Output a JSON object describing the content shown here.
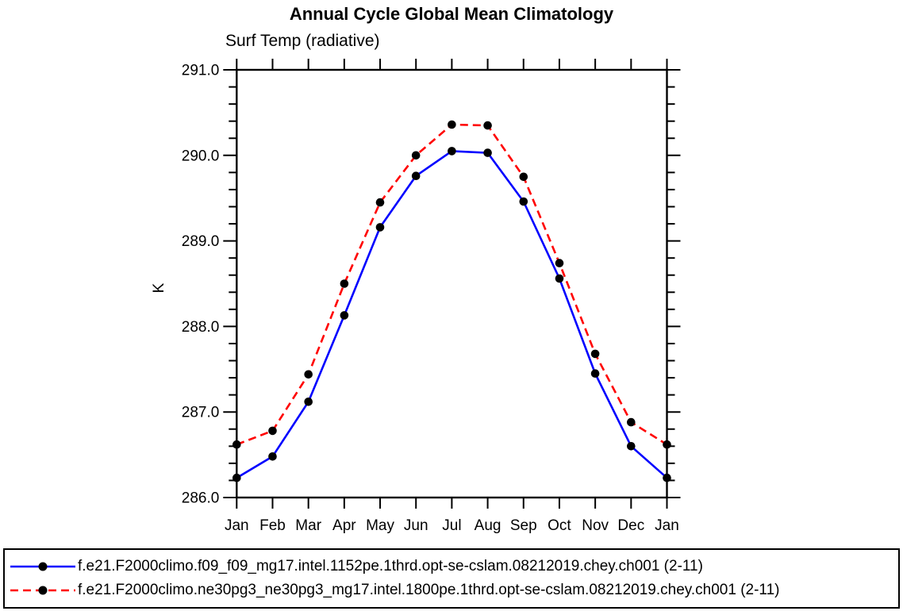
{
  "title": "Annual Cycle Global Mean Climatology",
  "chart_data": {
    "type": "line",
    "title": "Annual Cycle Global Mean Climatology",
    "subtitle": "Surf Temp (radiative)",
    "ylabel": "K",
    "ylim": [
      286.0,
      291.0
    ],
    "ytick_interval": 1.0,
    "yminor_interval": 0.2,
    "ytick_labels": [
      "286.0",
      "287.0",
      "288.0",
      "289.0",
      "290.0",
      "291.0"
    ],
    "categories": [
      "Jan",
      "Feb",
      "Mar",
      "Apr",
      "May",
      "Jun",
      "Jul",
      "Aug",
      "Sep",
      "Oct",
      "Nov",
      "Dec",
      "Jan"
    ],
    "series": [
      {
        "name": "f.e21.F2000climo.f09_f09_mg17.intel.1152pe.1thrd.opt-se-cslam.08212019.chey.ch001 (2-11)",
        "color": "#0000FF",
        "line_style": "solid",
        "marker": "filled-circle",
        "marker_color": "#000000",
        "values": [
          286.23,
          286.48,
          287.12,
          288.13,
          289.16,
          289.76,
          290.05,
          290.03,
          289.46,
          288.56,
          287.45,
          286.6,
          286.23
        ]
      },
      {
        "name": "f.e21.F2000climo.ne30pg3_ne30pg3_mg17.intel.1800pe.1thrd.opt-se-cslam.08212019.chey.ch001 (2-11)",
        "color": "#FF0000",
        "line_style": "dashed",
        "marker": "filled-circle",
        "marker_color": "#000000",
        "values": [
          286.62,
          286.78,
          287.44,
          288.5,
          289.45,
          290.0,
          290.36,
          290.35,
          289.75,
          288.74,
          287.68,
          286.88,
          286.62
        ]
      }
    ],
    "legend_position": "bottom",
    "grid": false,
    "background": "#FFFFFF",
    "axis_color": "#000000"
  }
}
